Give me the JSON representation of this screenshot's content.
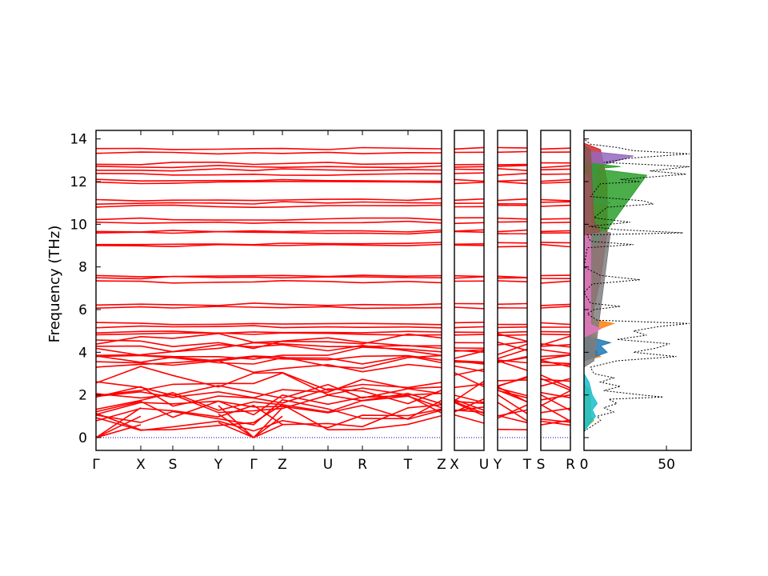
{
  "chart_data": {
    "type": "line",
    "ylabel": "Frequency (THz)",
    "ylim": [
      -0.6,
      14.4
    ],
    "yticks": [
      0,
      2,
      4,
      6,
      8,
      10,
      12,
      14
    ],
    "band_color": "#ff0000",
    "zero_line_color": "#0000aa",
    "panels": [
      {
        "id": "main",
        "segments": [
          {
            "from": "Γ",
            "to": "X"
          },
          {
            "from": "X",
            "to": "S"
          },
          {
            "from": "S",
            "to": "Y"
          },
          {
            "from": "Y",
            "to": "Γ"
          },
          {
            "from": "Γ",
            "to": "Z"
          },
          {
            "from": "Z",
            "to": "U"
          },
          {
            "from": "U",
            "to": "R"
          },
          {
            "from": "R",
            "to": "T"
          },
          {
            "from": "T",
            "to": "Z"
          }
        ]
      },
      {
        "id": "xu",
        "segments": [
          {
            "from": "X",
            "to": "U"
          }
        ]
      },
      {
        "id": "yt",
        "segments": [
          {
            "from": "Y",
            "to": "T"
          }
        ]
      },
      {
        "id": "sr",
        "segments": [
          {
            "from": "S",
            "to": "R"
          }
        ]
      }
    ],
    "labels_main": [
      "Γ",
      "X",
      "S",
      "Y",
      "Γ",
      "Z",
      "U",
      "R",
      "T",
      "Z"
    ],
    "labels_xu": [
      "X",
      "U"
    ],
    "labels_yt": [
      "Y",
      "T"
    ],
    "labels_sr": [
      "S",
      "R"
    ],
    "flat_bands": [
      13.55,
      13.35,
      12.85,
      12.7,
      12.55,
      12.35,
      12.05,
      11.95,
      11.15,
      11.0,
      10.85,
      10.25,
      10.1,
      9.7,
      9.6,
      9.1,
      9.0,
      7.55,
      7.5,
      7.3,
      6.25,
      6.1,
      5.35,
      5.2,
      4.95,
      4.85
    ],
    "mid_bands": [
      4.6,
      4.4,
      4.25,
      4.1,
      3.95,
      3.8,
      3.75,
      3.55,
      3.35,
      2.8,
      2.5,
      2.35,
      2.15,
      1.95,
      1.8,
      1.65,
      1.5,
      1.35,
      1.2,
      1.1,
      0.95,
      0.8
    ],
    "dos": {
      "xlim": [
        0,
        65
      ],
      "xticks": [
        0,
        50
      ],
      "total_color": "#000000",
      "total": [
        [
          0.3,
          0
        ],
        [
          0.5,
          4
        ],
        [
          0.8,
          10
        ],
        [
          1.0,
          8
        ],
        [
          1.2,
          18
        ],
        [
          1.4,
          12
        ],
        [
          1.6,
          20
        ],
        [
          1.8,
          15
        ],
        [
          1.9,
          48
        ],
        [
          2.0,
          35
        ],
        [
          2.2,
          12
        ],
        [
          2.4,
          22
        ],
        [
          2.6,
          10
        ],
        [
          2.8,
          18
        ],
        [
          3.0,
          6
        ],
        [
          3.3,
          4
        ],
        [
          3.6,
          20
        ],
        [
          3.8,
          56
        ],
        [
          4.0,
          30
        ],
        [
          4.2,
          44
        ],
        [
          4.4,
          52
        ],
        [
          4.6,
          20
        ],
        [
          4.8,
          38
        ],
        [
          5.0,
          30
        ],
        [
          5.2,
          45
        ],
        [
          5.35,
          64
        ],
        [
          5.5,
          8
        ],
        [
          5.8,
          2
        ],
        [
          6.0,
          6
        ],
        [
          6.15,
          22
        ],
        [
          6.3,
          4
        ],
        [
          6.8,
          0
        ],
        [
          7.2,
          5
        ],
        [
          7.4,
          34
        ],
        [
          7.6,
          10
        ],
        [
          8.0,
          0
        ],
        [
          8.9,
          2
        ],
        [
          9.05,
          30
        ],
        [
          9.2,
          4
        ],
        [
          9.5,
          2
        ],
        [
          9.6,
          60
        ],
        [
          9.75,
          20
        ],
        [
          9.9,
          3
        ],
        [
          10.1,
          28
        ],
        [
          10.3,
          6
        ],
        [
          10.8,
          14
        ],
        [
          10.95,
          42
        ],
        [
          11.1,
          36
        ],
        [
          11.3,
          4
        ],
        [
          11.9,
          10
        ],
        [
          12.0,
          34
        ],
        [
          12.1,
          22
        ],
        [
          12.35,
          62
        ],
        [
          12.5,
          40
        ],
        [
          12.7,
          64
        ],
        [
          12.9,
          12
        ],
        [
          13.1,
          28
        ],
        [
          13.3,
          64
        ],
        [
          13.45,
          30
        ],
        [
          13.6,
          20
        ],
        [
          13.75,
          4
        ],
        [
          14.0,
          0
        ]
      ],
      "partial": [
        {
          "color": "#d62728",
          "points": [
            [
              3.7,
              0
            ],
            [
              4.0,
              8
            ],
            [
              4.4,
              4
            ],
            [
              6.1,
              6
            ],
            [
              7.4,
              10
            ],
            [
              9.6,
              14
            ],
            [
              12.0,
              14
            ],
            [
              13.5,
              10
            ],
            [
              13.8,
              0
            ]
          ]
        },
        {
          "color": "#9467bd",
          "points": [
            [
              10.9,
              0
            ],
            [
              11.0,
              16
            ],
            [
              11.2,
              6
            ],
            [
              12.7,
              8
            ],
            [
              13.2,
              30
            ],
            [
              13.4,
              6
            ]
          ]
        },
        {
          "color": "#2ca02c",
          "points": [
            [
              9.0,
              0
            ],
            [
              9.1,
              8
            ],
            [
              12.3,
              38
            ],
            [
              12.6,
              6
            ],
            [
              12.7,
              22
            ],
            [
              12.9,
              0
            ]
          ]
        },
        {
          "color": "#ff7f0e",
          "points": [
            [
              3.6,
              0
            ],
            [
              3.8,
              10
            ],
            [
              4.0,
              6
            ],
            [
              4.6,
              8
            ],
            [
              5.0,
              6
            ],
            [
              5.35,
              18
            ],
            [
              5.6,
              0
            ]
          ]
        },
        {
          "color": "#1f77b4",
          "points": [
            [
              3.6,
              0
            ],
            [
              4.0,
              14
            ],
            [
              4.3,
              10
            ],
            [
              4.45,
              16
            ],
            [
              4.7,
              4
            ],
            [
              5.0,
              0
            ]
          ]
        },
        {
          "color": "#7f7f7f",
          "points": [
            [
              3.3,
              0
            ],
            [
              3.6,
              6
            ],
            [
              4.8,
              8
            ],
            [
              9.6,
              16
            ],
            [
              9.8,
              0
            ]
          ]
        },
        {
          "color": "#e377c2",
          "points": [
            [
              4.7,
              0
            ],
            [
              5.1,
              10
            ],
            [
              5.3,
              4
            ],
            [
              12.0,
              4
            ],
            [
              12.4,
              0
            ]
          ]
        },
        {
          "color": "#8c564b",
          "points": [
            [
              9.5,
              0
            ],
            [
              9.65,
              10
            ],
            [
              10.2,
              6
            ],
            [
              13.5,
              4
            ],
            [
              13.7,
              0
            ]
          ]
        },
        {
          "color": "#bcbd22",
          "points": [
            [
              0.4,
              0
            ],
            [
              0.8,
              6
            ],
            [
              1.0,
              4
            ],
            [
              1.8,
              4
            ],
            [
              2.3,
              3
            ],
            [
              2.5,
              0
            ]
          ]
        },
        {
          "color": "#17becf",
          "points": [
            [
              0.3,
              0
            ],
            [
              0.7,
              4
            ],
            [
              1.0,
              7
            ],
            [
              1.3,
              5
            ],
            [
              1.6,
              8
            ],
            [
              2.0,
              5
            ],
            [
              2.6,
              3
            ],
            [
              3.0,
              0
            ]
          ]
        }
      ]
    }
  }
}
